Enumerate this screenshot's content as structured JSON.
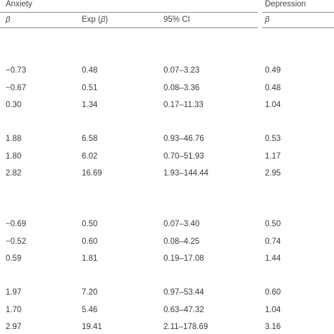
{
  "groups": {
    "anxiety": "Anxiety",
    "depression": "Depression"
  },
  "columns": {
    "beta": "β",
    "exp_prefix": "Exp (",
    "exp_beta": "β",
    "exp_suffix": ")",
    "ci": "95% CI",
    "dep_beta": "β"
  },
  "rows": [
    {
      "beta": "−0.73",
      "exp": "0.48",
      "ci": "0.07–3.23",
      "dep": "0.49"
    },
    {
      "beta": "−0.67",
      "exp": "0.51",
      "ci": "0.08–3.36",
      "dep": "0.48"
    },
    {
      "beta": "0.30",
      "exp": "1.34",
      "ci": "0.17–11.33",
      "dep": "1.04"
    },
    {
      "beta": "1.88",
      "exp": "6.58",
      "ci": "0.93–46.76",
      "dep": "0.53"
    },
    {
      "beta": "1.80",
      "exp": "6.02",
      "ci": "0.70–51.93",
      "dep": "1.17"
    },
    {
      "beta": "2.82",
      "exp": "16.69",
      "ci": "1.93–144.44",
      "dep": "2.95"
    },
    {
      "beta": "−0.69",
      "exp": "0.50",
      "ci": "0.07–3.40",
      "dep": "0.50"
    },
    {
      "beta": "−0.52",
      "exp": "0.60",
      "ci": "0.08–4.25",
      "dep": "0.74"
    },
    {
      "beta": "0.59",
      "exp": "1.81",
      "ci": "0.19–17.08",
      "dep": "1.44"
    },
    {
      "beta": "1.97",
      "exp": "7.20",
      "ci": "0.97–53.44",
      "dep": "0.60"
    },
    {
      "beta": "1.70",
      "exp": "5.46",
      "ci": "0.63–47.32",
      "dep": "1.04"
    },
    {
      "beta": "2.97",
      "exp": "19.41",
      "ci": "2.11–178.69",
      "dep": "3.16"
    }
  ]
}
